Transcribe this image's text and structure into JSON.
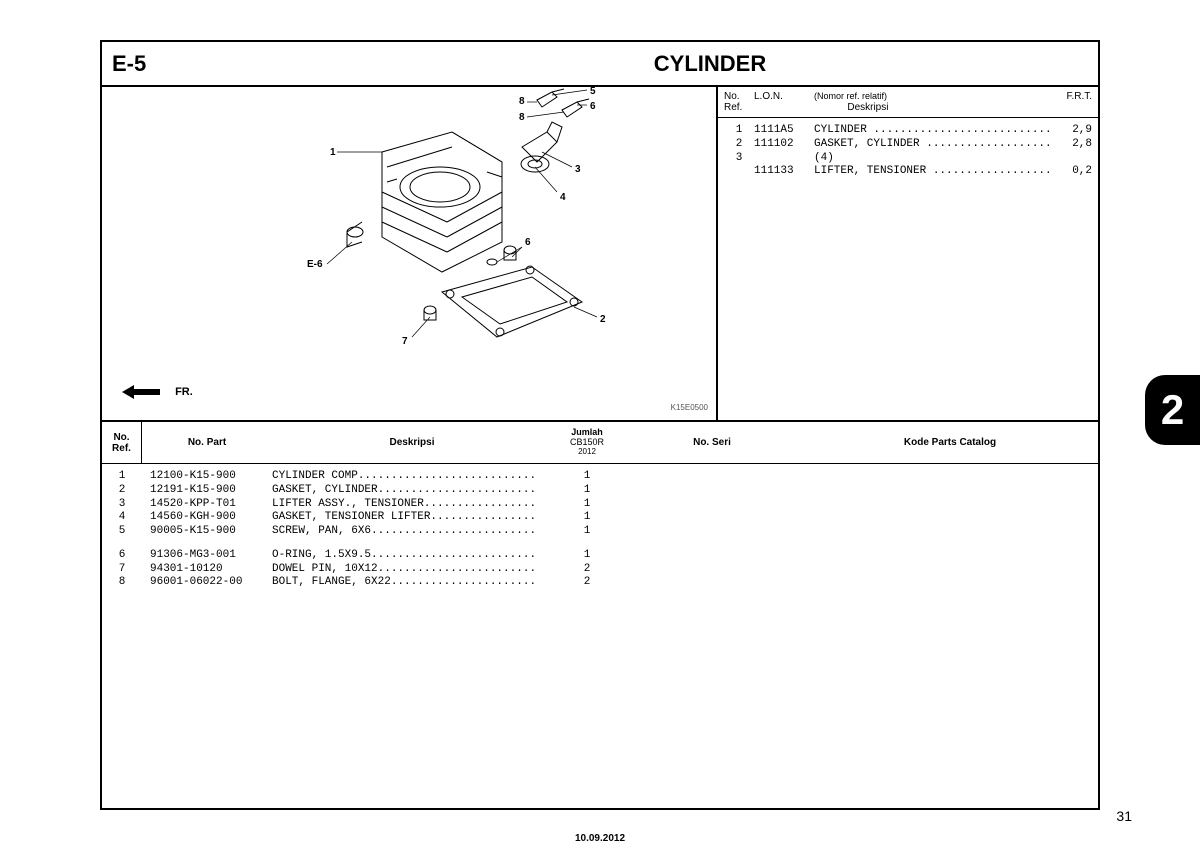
{
  "header": {
    "section_code": "E-5",
    "title": "CYLINDER"
  },
  "diagram": {
    "fr_label": "FR.",
    "code": "K15E0500",
    "ref_tag": "E-6",
    "callouts": [
      "1",
      "2",
      "3",
      "4",
      "5",
      "6",
      "7",
      "8"
    ]
  },
  "lon": {
    "header": {
      "no_ref": "No.\nRef.",
      "lon": "L.O.N.",
      "nomor": "(Nomor ref. relatif)",
      "deskripsi": "Deskripsi",
      "frt": "F.R.T."
    },
    "rows": [
      {
        "ref": "1",
        "lon": "1111A5",
        "desc": "CYLINDER ...........................",
        "frt": "2,9"
      },
      {
        "ref": "2",
        "lon": "111102",
        "desc": "GASKET, CYLINDER ...................",
        "frt": "2,8"
      },
      {
        "ref": "3",
        "lon": "",
        "desc": "(4)",
        "frt": ""
      },
      {
        "ref": "",
        "lon": "111133",
        "desc": "LIFTER, TENSIONER ..................",
        "frt": "0,2"
      }
    ]
  },
  "table": {
    "header": {
      "no_ref": "No.\nRef.",
      "no_part": "No. Part",
      "deskripsi": "Deskripsi",
      "jumlah": "Jumlah",
      "model": "CB150R",
      "year": "2012",
      "no_seri": "No. Seri",
      "kode": "Kode Parts Catalog"
    },
    "rows": [
      {
        "ref": "1",
        "part": "12100-K15-900",
        "desc": "CYLINDER COMP...........................",
        "qty": "1"
      },
      {
        "ref": "2",
        "part": "12191-K15-900",
        "desc": "GASKET, CYLINDER........................",
        "qty": "1"
      },
      {
        "ref": "3",
        "part": "14520-KPP-T01",
        "desc": "LIFTER ASSY., TENSIONER.................",
        "qty": "1"
      },
      {
        "ref": "4",
        "part": "14560-KGH-900",
        "desc": "GASKET, TENSIONER LIFTER................",
        "qty": "1"
      },
      {
        "ref": "5",
        "part": "90005-K15-900",
        "desc": "SCREW, PAN, 6X6.........................",
        "qty": "1"
      },
      {
        "gap": true
      },
      {
        "ref": "6",
        "part": "91306-MG3-001",
        "desc": "O-RING, 1.5X9.5.........................",
        "qty": "1"
      },
      {
        "ref": "7",
        "part": "94301-10120",
        "desc": "DOWEL PIN, 10X12........................",
        "qty": "2"
      },
      {
        "ref": "8",
        "part": "96001-06022-00",
        "desc": "BOLT, FLANGE, 6X22......................",
        "qty": "2"
      }
    ]
  },
  "footer": {
    "date": "10.09.2012",
    "page_num": "31",
    "chapter": "2"
  }
}
